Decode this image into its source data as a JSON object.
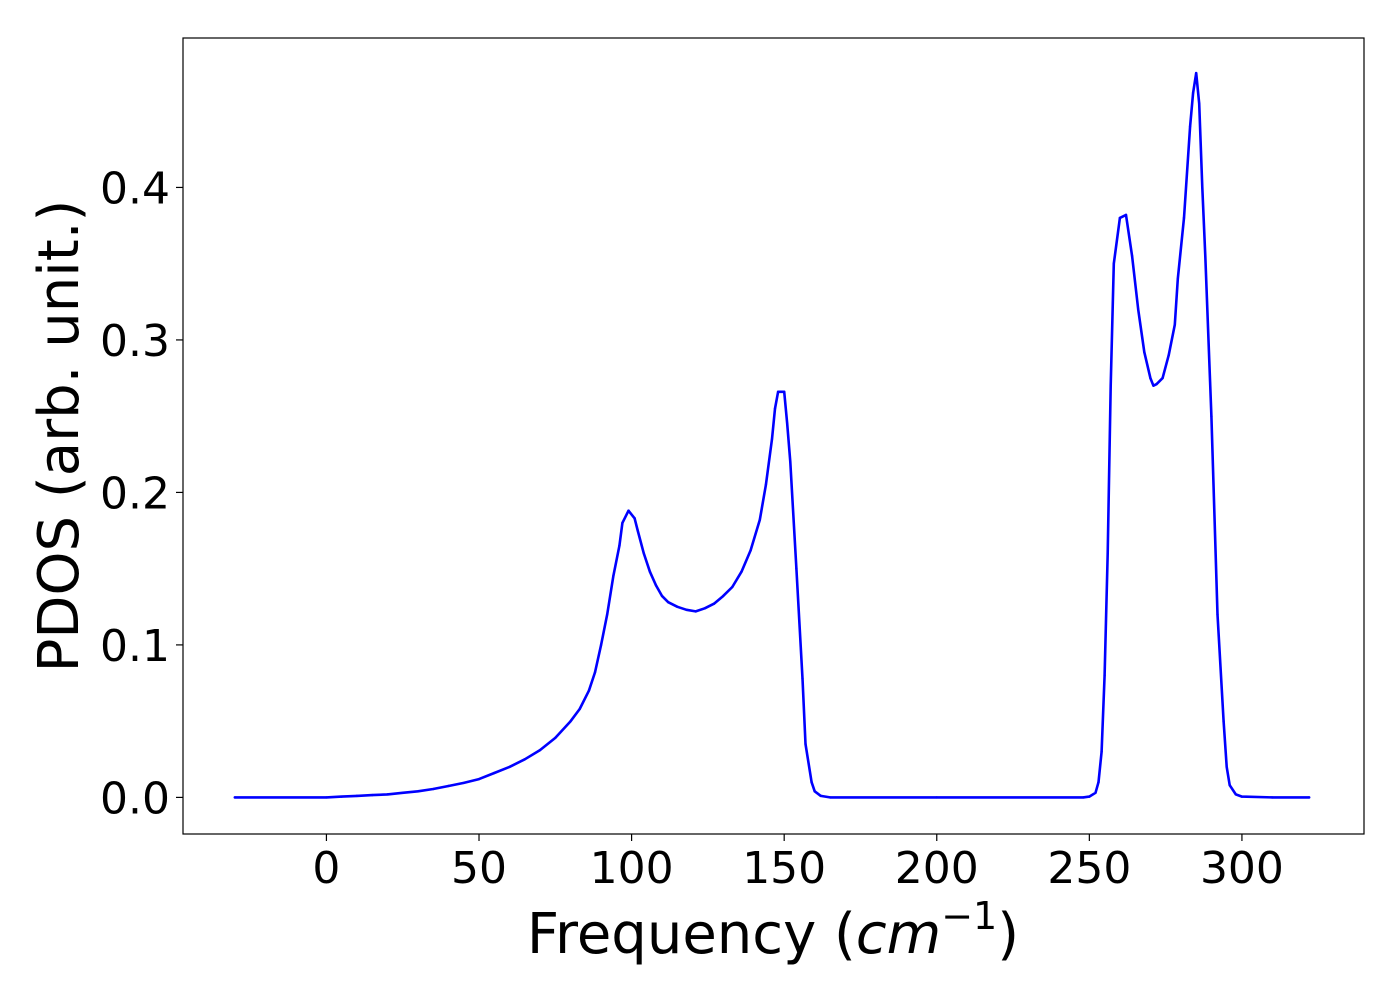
{
  "chart_data": {
    "type": "line",
    "title": "",
    "xlabel": {
      "prefix": "Frequency (",
      "math_base": "cm",
      "math_sup": "−1",
      "suffix": ")"
    },
    "ylabel": "PDOS (arb. unit.)",
    "xlim": [
      -47,
      340
    ],
    "ylim": [
      -0.024,
      0.498
    ],
    "xticks": [
      0,
      50,
      100,
      150,
      200,
      250,
      300
    ],
    "xtick_labels": [
      "0",
      "50",
      "100",
      "150",
      "200",
      "250",
      "300"
    ],
    "yticks": [
      0.0,
      0.1,
      0.2,
      0.3,
      0.4
    ],
    "ytick_labels": [
      "0.0",
      "0.1",
      "0.2",
      "0.3",
      "0.4"
    ],
    "grid": false,
    "legend": "none",
    "series": [
      {
        "color": "#0000ff",
        "x": [
          -30,
          0,
          5,
          10,
          15,
          20,
          25,
          30,
          35,
          40,
          45,
          50,
          55,
          60,
          65,
          70,
          75,
          80,
          83,
          86,
          88,
          90,
          92,
          94,
          96,
          97,
          99,
          101,
          102,
          104,
          106,
          108,
          110,
          112,
          115,
          118,
          121,
          124,
          127,
          130,
          133,
          136,
          139,
          142,
          144,
          146,
          147,
          148,
          150,
          151,
          152,
          154,
          156,
          157,
          159,
          160,
          162,
          165,
          200,
          248,
          250,
          252,
          253,
          254,
          255,
          256,
          257,
          258,
          260,
          262,
          264,
          266,
          268,
          270,
          271,
          272,
          274,
          276,
          278,
          279,
          281,
          283,
          284,
          285,
          286,
          287,
          288,
          290,
          292,
          294,
          295,
          296,
          298,
          300,
          310,
          322
        ],
        "y": [
          0.0,
          0.0,
          0.0005,
          0.001,
          0.0015,
          0.002,
          0.003,
          0.004,
          0.0055,
          0.0075,
          0.0095,
          0.012,
          0.016,
          0.02,
          0.025,
          0.031,
          0.039,
          0.05,
          0.058,
          0.07,
          0.082,
          0.1,
          0.12,
          0.145,
          0.165,
          0.18,
          0.188,
          0.183,
          0.175,
          0.16,
          0.148,
          0.139,
          0.132,
          0.128,
          0.125,
          0.123,
          0.122,
          0.124,
          0.127,
          0.132,
          0.138,
          0.148,
          0.162,
          0.182,
          0.205,
          0.235,
          0.255,
          0.266,
          0.266,
          0.245,
          0.22,
          0.15,
          0.078,
          0.035,
          0.01,
          0.004,
          0.001,
          0.0,
          0.0,
          0.0,
          0.0005,
          0.003,
          0.01,
          0.03,
          0.08,
          0.16,
          0.27,
          0.35,
          0.38,
          0.382,
          0.355,
          0.32,
          0.292,
          0.275,
          0.27,
          0.271,
          0.275,
          0.29,
          0.31,
          0.34,
          0.38,
          0.44,
          0.462,
          0.475,
          0.455,
          0.4,
          0.355,
          0.25,
          0.12,
          0.05,
          0.02,
          0.008,
          0.002,
          0.0005,
          0.0,
          0.0
        ]
      }
    ]
  }
}
